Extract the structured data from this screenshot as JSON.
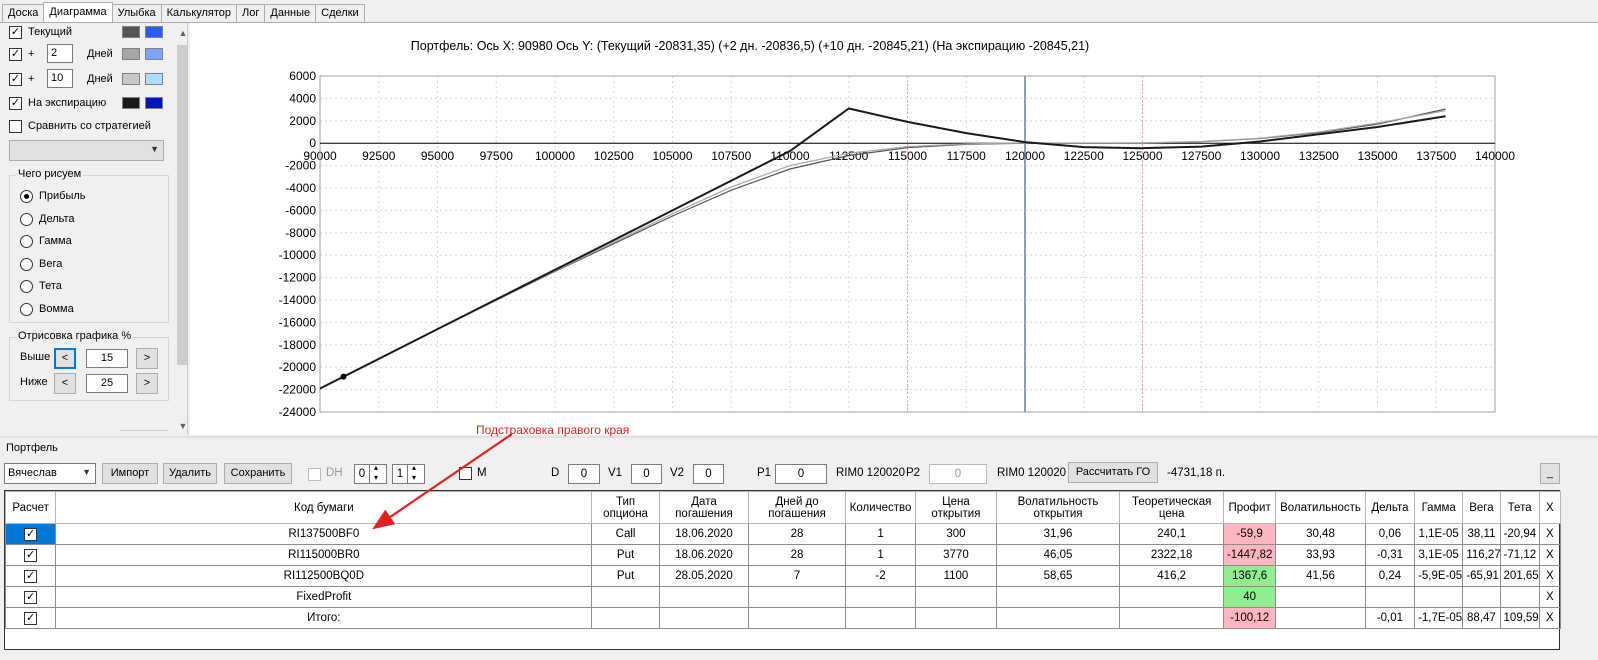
{
  "tabs": [
    "Доска",
    "Диаграмма",
    "Улыбка",
    "Калькулятор",
    "Лог",
    "Данные",
    "Сделки"
  ],
  "active_tab": "Диаграмма",
  "left_panel": {
    "current_label": "Текущий",
    "plus_label": "+",
    "days_label": "Дней",
    "days1": "2",
    "days2": "10",
    "expiry_label": "На экспирацию",
    "compare_label": "Сравнить со стратегией",
    "what_draw_title": "Чего рисуем",
    "radios": [
      "Прибыль",
      "Дельта",
      "Гамма",
      "Вега",
      "Тета",
      "Вомма"
    ],
    "radio_selected": "Прибыль",
    "drawing_title": "Отрисовка графика %",
    "above_label": "Выше",
    "below_label": "Ниже",
    "above_value": "15",
    "below_value": "25",
    "prev": "<",
    "next": ">",
    "swatch_colors": [
      [
        "#555555",
        "#2a5cff"
      ],
      [
        "#a6a6a6",
        "#7fa4ff"
      ],
      [
        "#c8c8c8",
        "#b0dcff"
      ],
      [
        "#1a1a1a",
        "#0014c8"
      ]
    ]
  },
  "chart_header": "Портфель: Ось X:  90980 Ось Y:  (Текущий -20831,35)  (+2 дн. -20836,5)  (+10 дн. -20845,21)  (На экспирацию -20845,21)",
  "chart_data": {
    "type": "line",
    "xlim": [
      90000,
      140000
    ],
    "ylim": [
      -24000,
      6000
    ],
    "x_ticks": [
      90000,
      92500,
      95000,
      97500,
      100000,
      102500,
      105000,
      107500,
      110000,
      112500,
      115000,
      117500,
      120000,
      122500,
      125000,
      127500,
      130000,
      132500,
      135000,
      137500,
      140000
    ],
    "y_ticks": [
      6000,
      4000,
      2000,
      0,
      -2000,
      -4000,
      -6000,
      -8000,
      -10000,
      -12000,
      -14000,
      -16000,
      -18000,
      -20000,
      -22000,
      -24000
    ],
    "grid": true,
    "vlines": [
      {
        "x": 115000,
        "color": "#ff9aa8"
      },
      {
        "x": 120000,
        "color": "#6a7fa8"
      },
      {
        "x": 125000,
        "color": "#ff9aa8"
      }
    ],
    "series": [
      {
        "color": "#1a1a1a",
        "width": 2,
        "points": [
          [
            90000,
            -21900
          ],
          [
            91000,
            -20845
          ],
          [
            95000,
            -16600
          ],
          [
            100000,
            -11300
          ],
          [
            105000,
            -6000
          ],
          [
            110000,
            -700
          ],
          [
            112500,
            3100
          ],
          [
            115000,
            1900
          ],
          [
            117500,
            900
          ],
          [
            120000,
            100
          ],
          [
            122500,
            -350
          ],
          [
            125000,
            -450
          ],
          [
            127500,
            -300
          ],
          [
            130000,
            150
          ],
          [
            132500,
            800
          ],
          [
            135000,
            1450
          ],
          [
            137900,
            2400
          ]
        ]
      },
      {
        "color": "#a6a6a6",
        "width": 1.2,
        "points": [
          [
            90000,
            -21900
          ],
          [
            95000,
            -16600
          ],
          [
            100000,
            -11400
          ],
          [
            105000,
            -6300
          ],
          [
            107500,
            -3900
          ],
          [
            110000,
            -2000
          ],
          [
            112500,
            -900
          ],
          [
            115000,
            -300
          ],
          [
            117500,
            -50
          ],
          [
            120000,
            20
          ],
          [
            122500,
            20
          ],
          [
            125000,
            30
          ],
          [
            127500,
            150
          ],
          [
            130000,
            450
          ],
          [
            132500,
            1000
          ],
          [
            135000,
            1800
          ],
          [
            137900,
            2900
          ]
        ]
      },
      {
        "color": "#555555",
        "width": 1.2,
        "points": [
          [
            90000,
            -21900
          ],
          [
            95000,
            -16600
          ],
          [
            100000,
            -11450
          ],
          [
            105000,
            -6500
          ],
          [
            107500,
            -4200
          ],
          [
            110000,
            -2300
          ],
          [
            112500,
            -1100
          ],
          [
            115000,
            -400
          ],
          [
            117500,
            -100
          ],
          [
            120000,
            0
          ],
          [
            122500,
            0
          ],
          [
            125000,
            20
          ],
          [
            127500,
            130
          ],
          [
            130000,
            420
          ],
          [
            132500,
            950
          ],
          [
            135000,
            1700
          ],
          [
            137900,
            3050
          ]
        ]
      }
    ],
    "marker": {
      "x": 91000,
      "y": -20845
    }
  },
  "portfolio": {
    "label": "Портфель",
    "name": "Вячеслав",
    "import": "Импорт",
    "delete": "Удалить",
    "save": "Сохранить",
    "dh_label": "DH",
    "dh1": "0",
    "dh2": "1",
    "m_label": "M",
    "d_label": "D",
    "d_value": "0",
    "v1_label": "V1",
    "v1_value": "0",
    "v2_label": "V2",
    "v2_value": "0",
    "p1_label": "P1",
    "p1_value": "0",
    "p1_instr": "RIM0 120020",
    "p2_label": "P2",
    "p2_value": "0",
    "p2_instr": "RIM0 120020",
    "calc_go": "Рассчитать ГО",
    "go_value": "-4731,18 п.",
    "minimize": "_"
  },
  "annotation": "Подстраховка правого края",
  "table": {
    "headers": [
      "Расчет",
      "Код бумаги",
      "Тип опциона",
      "Дата погашения",
      "Дней до погашения",
      "Количество",
      "Цена открытия",
      "Волатильность открытия",
      "Теоретическая цена",
      "Профит",
      "Волатильность",
      "Дельта",
      "Гамма",
      "Вега",
      "Тета",
      "X"
    ],
    "rows": [
      [
        "RI137500BF0",
        "Call",
        "18.06.2020",
        "28",
        "1",
        "300",
        "31,96",
        "240,1",
        "-59,9",
        "30,48",
        "0,06",
        "1,1E-05",
        "38,11",
        "-20,94",
        "X"
      ],
      [
        "RI115000BR0",
        "Put",
        "18.06.2020",
        "28",
        "1",
        "3770",
        "46,05",
        "2322,18",
        "-1447,82",
        "33,93",
        "-0,31",
        "3,1E-05",
        "116,27",
        "-71,12",
        "X"
      ],
      [
        "RI112500BQ0D",
        "Put",
        "28.05.2020",
        "7",
        "-2",
        "1100",
        "58,65",
        "416,2",
        "1367,6",
        "41,56",
        "0,24",
        "-5,9E-05",
        "-65,91",
        "201,65",
        "X"
      ],
      [
        "FixedProfit",
        "",
        "",
        "",
        "",
        "",
        "",
        "",
        "40",
        "",
        "",
        "",
        "",
        "",
        "X"
      ],
      [
        "Итого:",
        "",
        "",
        "",
        "",
        "",
        "",
        "",
        "-100,12",
        "",
        "-0,01",
        "-1,7E-05",
        "88,47",
        "109,59",
        "X"
      ]
    ],
    "profit_class": [
      "pink",
      "pink",
      "green",
      "green",
      "pink"
    ]
  }
}
